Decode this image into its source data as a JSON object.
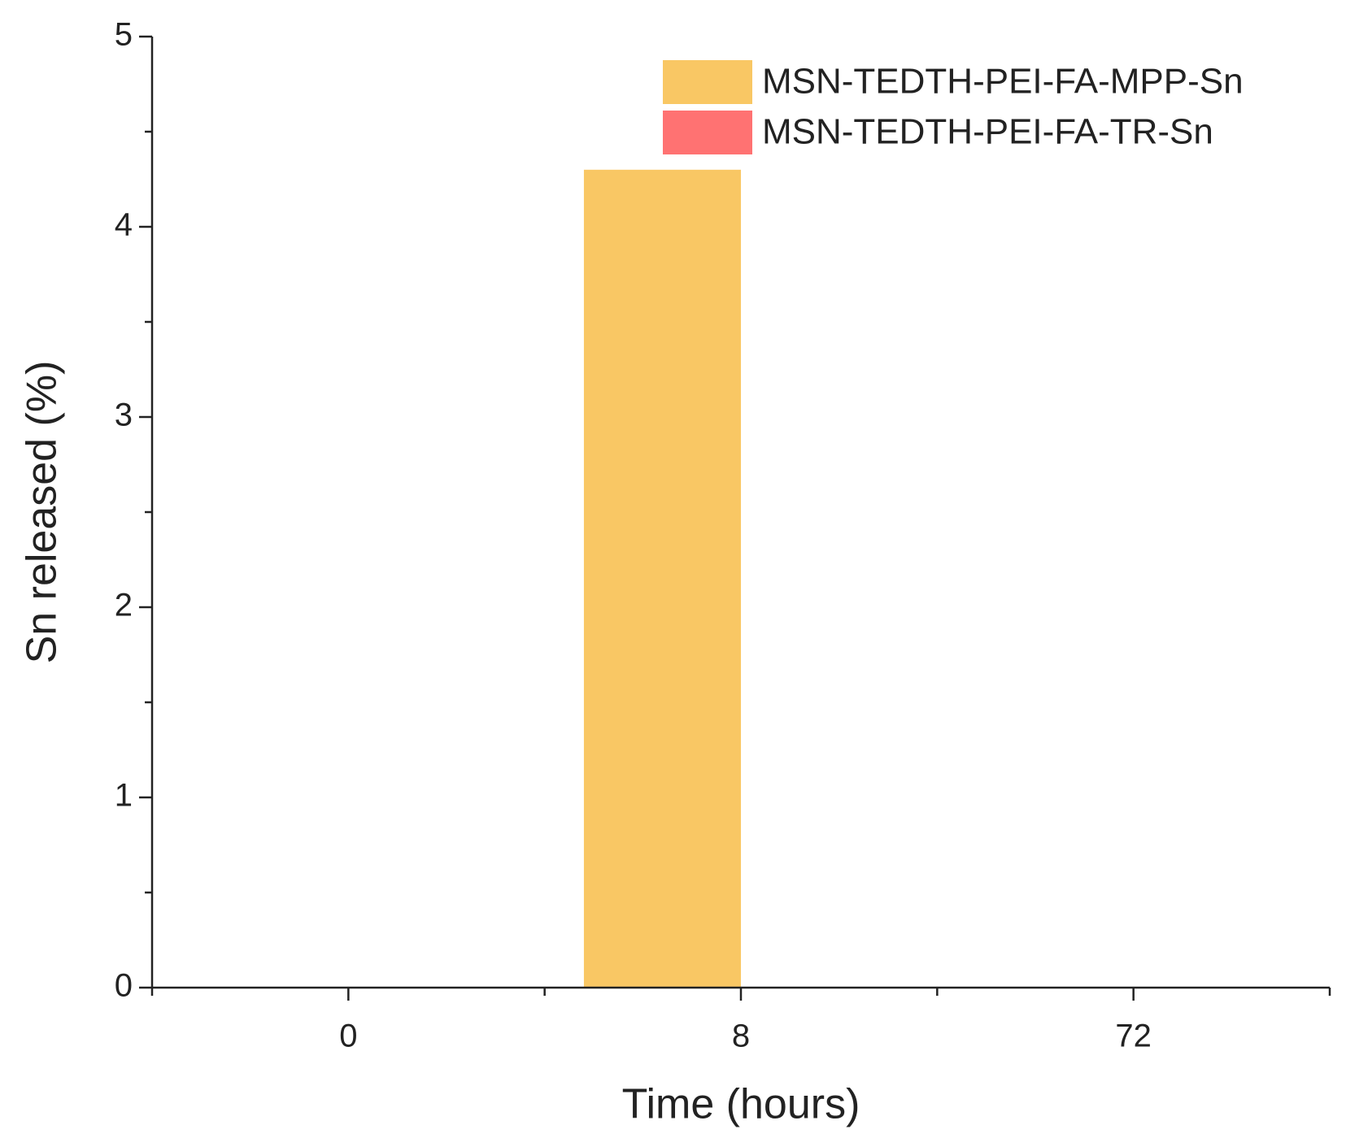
{
  "chart_data": {
    "type": "bar",
    "x_label": "Time (hours)",
    "y_label": "Sn released (%)",
    "categories": [
      "0",
      "8",
      "72"
    ],
    "series": [
      {
        "name": "MSN-TEDTH-PEI-FA-MPP-Sn",
        "color": "#f9c764",
        "values": [
          0,
          4.3,
          0
        ]
      },
      {
        "name": "MSN-TEDTH-PEI-FA-TR-Sn",
        "color": "#ff7272",
        "values": [
          0,
          0,
          0
        ]
      }
    ],
    "ylim": [
      0,
      5
    ],
    "yticks": [
      0,
      1,
      2,
      3,
      4,
      5
    ],
    "legend": "upper-right"
  }
}
